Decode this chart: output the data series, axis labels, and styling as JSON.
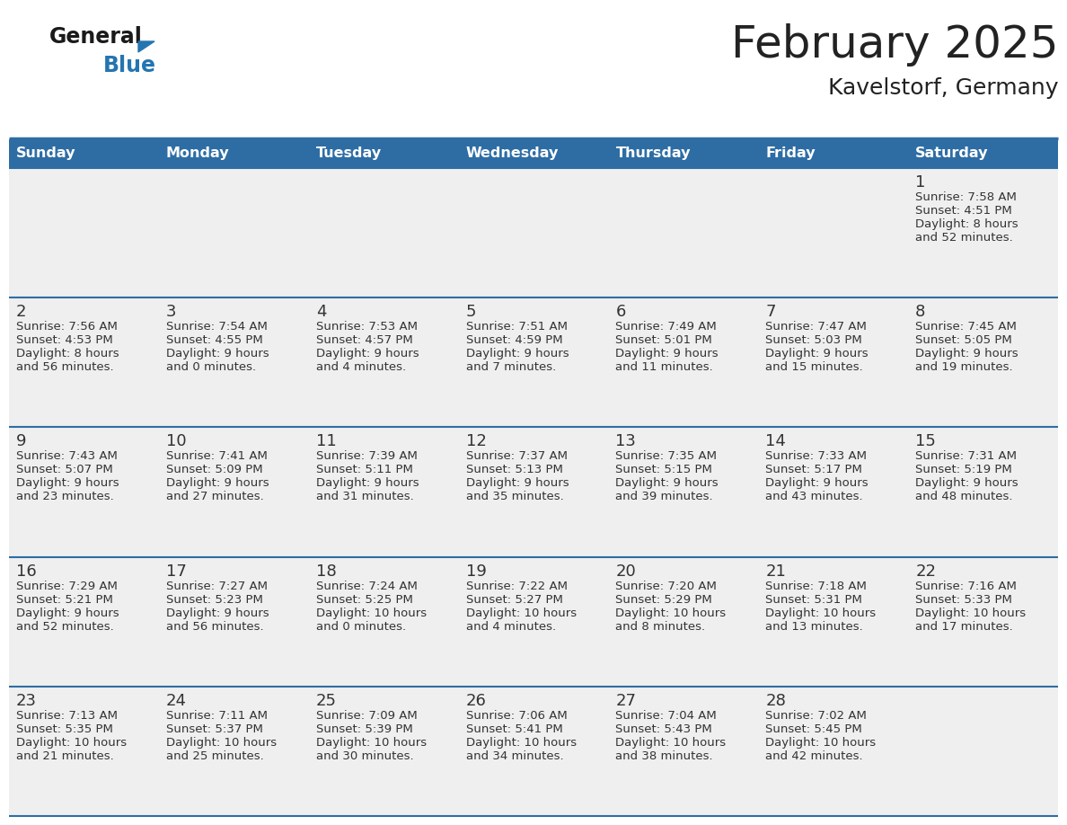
{
  "title": "February 2025",
  "subtitle": "Kavelstorf, Germany",
  "days_of_week": [
    "Sunday",
    "Monday",
    "Tuesday",
    "Wednesday",
    "Thursday",
    "Friday",
    "Saturday"
  ],
  "header_bg": "#2E6DA4",
  "header_text": "#FFFFFF",
  "cell_bg": "#EFEFEF",
  "line_color": "#2E6DA4",
  "text_color": "#333333",
  "title_color": "#222222",
  "logo_black": "#1a1a1a",
  "logo_blue": "#2475B0",
  "calendar": [
    [
      {
        "day": null
      },
      {
        "day": null
      },
      {
        "day": null
      },
      {
        "day": null
      },
      {
        "day": null
      },
      {
        "day": null
      },
      {
        "day": 1,
        "sunrise": "7:58 AM",
        "sunset": "4:51 PM",
        "daylight_h": "8 hours",
        "daylight_m": "52 minutes"
      }
    ],
    [
      {
        "day": 2,
        "sunrise": "7:56 AM",
        "sunset": "4:53 PM",
        "daylight_h": "8 hours",
        "daylight_m": "56 minutes"
      },
      {
        "day": 3,
        "sunrise": "7:54 AM",
        "sunset": "4:55 PM",
        "daylight_h": "9 hours",
        "daylight_m": "0 minutes"
      },
      {
        "day": 4,
        "sunrise": "7:53 AM",
        "sunset": "4:57 PM",
        "daylight_h": "9 hours",
        "daylight_m": "4 minutes"
      },
      {
        "day": 5,
        "sunrise": "7:51 AM",
        "sunset": "4:59 PM",
        "daylight_h": "9 hours",
        "daylight_m": "7 minutes"
      },
      {
        "day": 6,
        "sunrise": "7:49 AM",
        "sunset": "5:01 PM",
        "daylight_h": "9 hours",
        "daylight_m": "11 minutes"
      },
      {
        "day": 7,
        "sunrise": "7:47 AM",
        "sunset": "5:03 PM",
        "daylight_h": "9 hours",
        "daylight_m": "15 minutes"
      },
      {
        "day": 8,
        "sunrise": "7:45 AM",
        "sunset": "5:05 PM",
        "daylight_h": "9 hours",
        "daylight_m": "19 minutes"
      }
    ],
    [
      {
        "day": 9,
        "sunrise": "7:43 AM",
        "sunset": "5:07 PM",
        "daylight_h": "9 hours",
        "daylight_m": "23 minutes"
      },
      {
        "day": 10,
        "sunrise": "7:41 AM",
        "sunset": "5:09 PM",
        "daylight_h": "9 hours",
        "daylight_m": "27 minutes"
      },
      {
        "day": 11,
        "sunrise": "7:39 AM",
        "sunset": "5:11 PM",
        "daylight_h": "9 hours",
        "daylight_m": "31 minutes"
      },
      {
        "day": 12,
        "sunrise": "7:37 AM",
        "sunset": "5:13 PM",
        "daylight_h": "9 hours",
        "daylight_m": "35 minutes"
      },
      {
        "day": 13,
        "sunrise": "7:35 AM",
        "sunset": "5:15 PM",
        "daylight_h": "9 hours",
        "daylight_m": "39 minutes"
      },
      {
        "day": 14,
        "sunrise": "7:33 AM",
        "sunset": "5:17 PM",
        "daylight_h": "9 hours",
        "daylight_m": "43 minutes"
      },
      {
        "day": 15,
        "sunrise": "7:31 AM",
        "sunset": "5:19 PM",
        "daylight_h": "9 hours",
        "daylight_m": "48 minutes"
      }
    ],
    [
      {
        "day": 16,
        "sunrise": "7:29 AM",
        "sunset": "5:21 PM",
        "daylight_h": "9 hours",
        "daylight_m": "52 minutes"
      },
      {
        "day": 17,
        "sunrise": "7:27 AM",
        "sunset": "5:23 PM",
        "daylight_h": "9 hours",
        "daylight_m": "56 minutes"
      },
      {
        "day": 18,
        "sunrise": "7:24 AM",
        "sunset": "5:25 PM",
        "daylight_h": "10 hours",
        "daylight_m": "0 minutes"
      },
      {
        "day": 19,
        "sunrise": "7:22 AM",
        "sunset": "5:27 PM",
        "daylight_h": "10 hours",
        "daylight_m": "4 minutes"
      },
      {
        "day": 20,
        "sunrise": "7:20 AM",
        "sunset": "5:29 PM",
        "daylight_h": "10 hours",
        "daylight_m": "8 minutes"
      },
      {
        "day": 21,
        "sunrise": "7:18 AM",
        "sunset": "5:31 PM",
        "daylight_h": "10 hours",
        "daylight_m": "13 minutes"
      },
      {
        "day": 22,
        "sunrise": "7:16 AM",
        "sunset": "5:33 PM",
        "daylight_h": "10 hours",
        "daylight_m": "17 minutes"
      }
    ],
    [
      {
        "day": 23,
        "sunrise": "7:13 AM",
        "sunset": "5:35 PM",
        "daylight_h": "10 hours",
        "daylight_m": "21 minutes"
      },
      {
        "day": 24,
        "sunrise": "7:11 AM",
        "sunset": "5:37 PM",
        "daylight_h": "10 hours",
        "daylight_m": "25 minutes"
      },
      {
        "day": 25,
        "sunrise": "7:09 AM",
        "sunset": "5:39 PM",
        "daylight_h": "10 hours",
        "daylight_m": "30 minutes"
      },
      {
        "day": 26,
        "sunrise": "7:06 AM",
        "sunset": "5:41 PM",
        "daylight_h": "10 hours",
        "daylight_m": "34 minutes"
      },
      {
        "day": 27,
        "sunrise": "7:04 AM",
        "sunset": "5:43 PM",
        "daylight_h": "10 hours",
        "daylight_m": "38 minutes"
      },
      {
        "day": 28,
        "sunrise": "7:02 AM",
        "sunset": "5:45 PM",
        "daylight_h": "10 hours",
        "daylight_m": "42 minutes"
      },
      {
        "day": null
      }
    ]
  ]
}
